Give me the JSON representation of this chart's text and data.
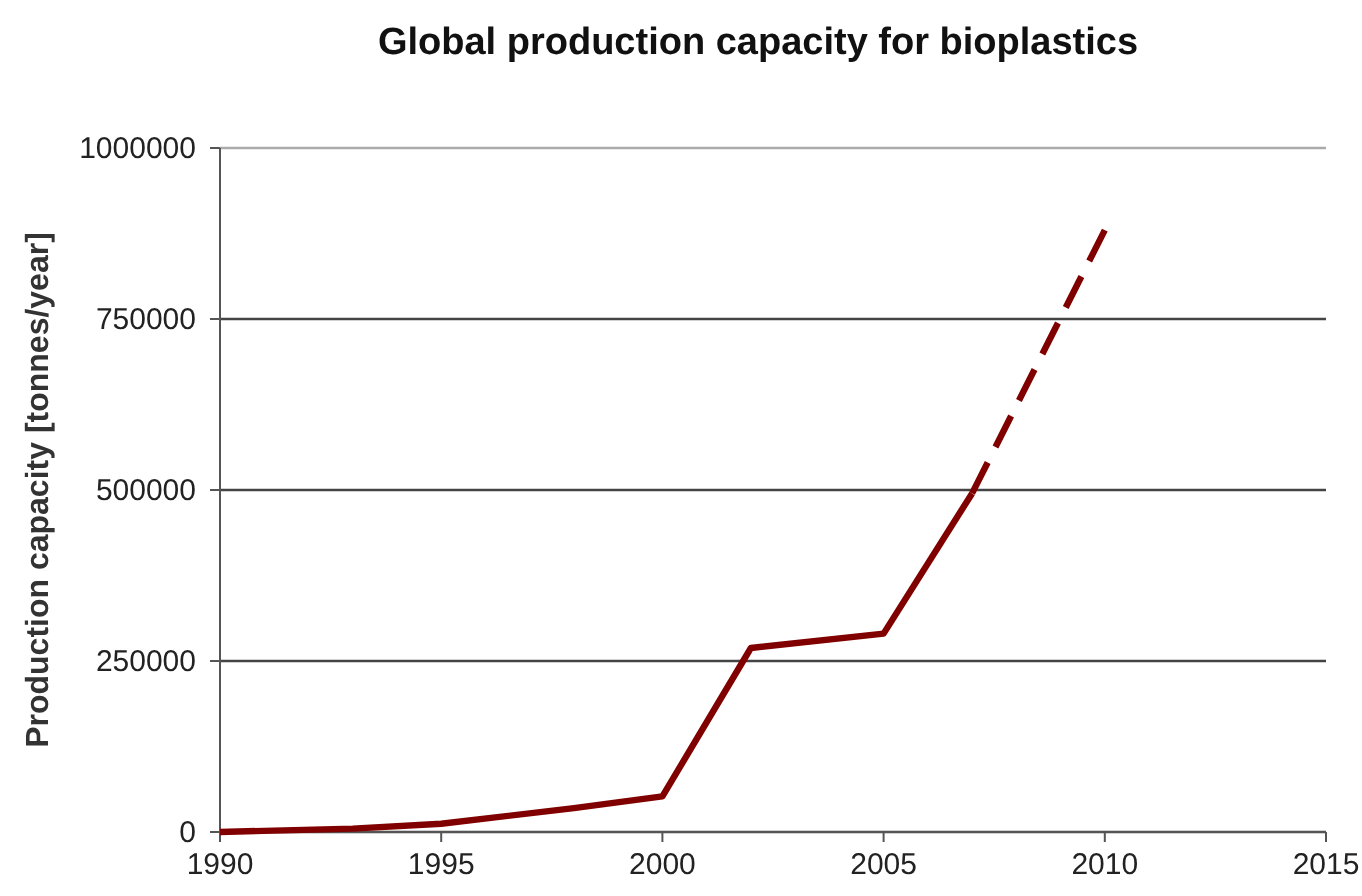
{
  "chart_data": {
    "type": "line",
    "title": "Global production capacity for bioplastics",
    "ylabel": "Production capacity [tonnes/year]",
    "series": [
      {
        "color": "#800000",
        "line_style": "solid",
        "x": [
          1990,
          1993,
          1995,
          1998,
          2000,
          2002,
          2005,
          2007
        ],
        "values": [
          0,
          5000,
          12000,
          35000,
          52000,
          269000,
          290000,
          495000
        ]
      },
      {
        "color": "#800000",
        "line_style": "dashed",
        "x": [
          2007,
          2010
        ],
        "values": [
          495000,
          880000
        ]
      }
    ],
    "xlim": [
      1990,
      2015
    ],
    "xticks": [
      1990,
      1995,
      2000,
      2005,
      2010,
      2015
    ],
    "ylim": [
      0,
      1000000
    ],
    "yticks": [
      0,
      250000,
      500000,
      750000,
      1000000
    ],
    "grid": "y",
    "marker": "none"
  }
}
